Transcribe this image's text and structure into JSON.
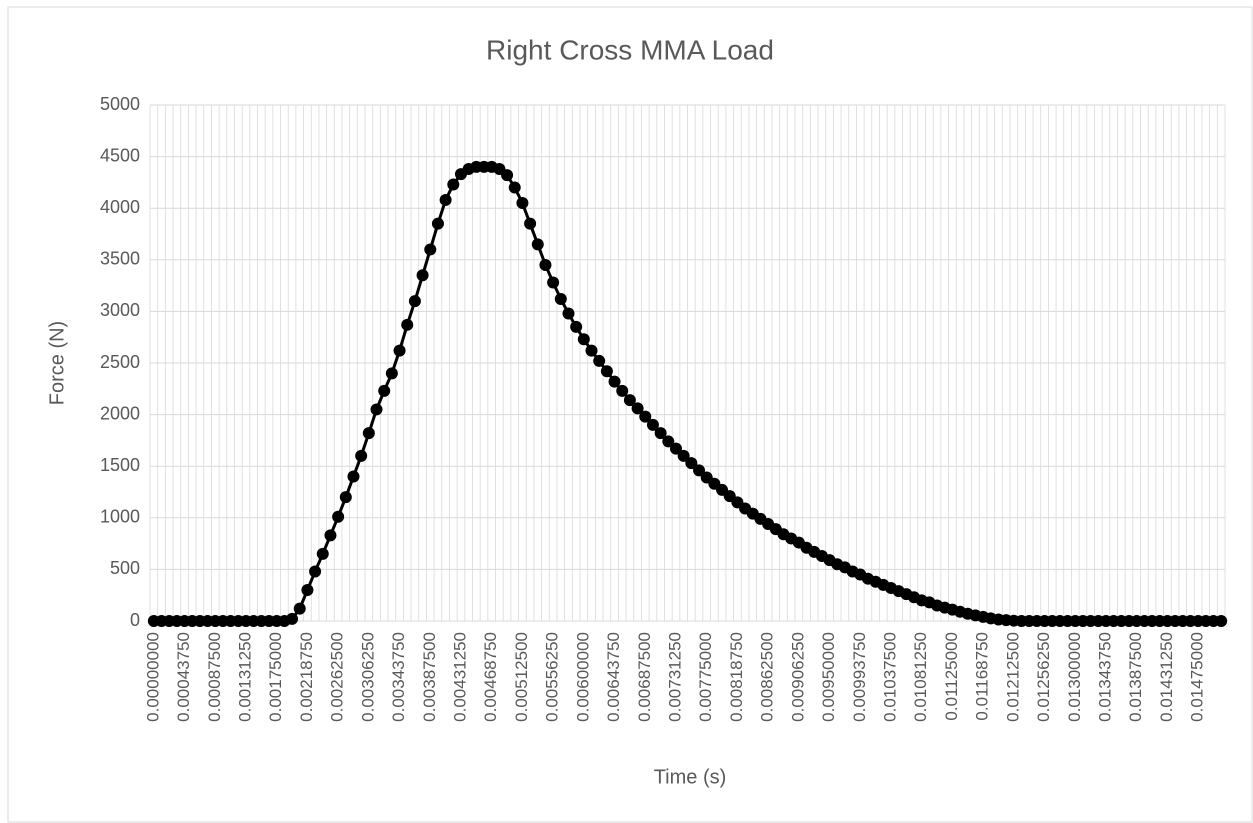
{
  "chart_data": {
    "type": "line",
    "title": "Right Cross MMA Load",
    "x_label": "Time (s)",
    "y_label": "Force (N)",
    "categories": [
      "0.00000000",
      null,
      null,
      null,
      "0.00043750",
      null,
      null,
      null,
      "0.00087500",
      null,
      null,
      null,
      "0.00131250",
      null,
      null,
      null,
      "0.00175000",
      null,
      null,
      null,
      "0.00218750",
      null,
      null,
      null,
      "0.00262500",
      null,
      null,
      null,
      "0.00306250",
      null,
      null,
      null,
      "0.00343750",
      null,
      null,
      null,
      "0.00387500",
      null,
      null,
      null,
      "0.00431250",
      null,
      null,
      null,
      "0.00468750",
      null,
      null,
      null,
      "0.00512500",
      null,
      null,
      null,
      "0.00556250",
      null,
      null,
      null,
      "0.00600000",
      null,
      null,
      null,
      "0.00643750",
      null,
      null,
      null,
      "0.00687500",
      null,
      null,
      null,
      "0.00731250",
      null,
      null,
      null,
      "0.00775000",
      null,
      null,
      null,
      "0.00818750",
      null,
      null,
      null,
      "0.00862500",
      null,
      null,
      null,
      "0.00906250",
      null,
      null,
      null,
      "0.00950000",
      null,
      null,
      null,
      "0.00993750",
      null,
      null,
      null,
      "0.01037500",
      null,
      null,
      null,
      "0.01081250",
      null,
      null,
      null,
      "0.01125000",
      null,
      null,
      null,
      "0.01168750",
      null,
      null,
      null,
      "0.01212500",
      null,
      null,
      null,
      "0.01256250",
      null,
      null,
      null,
      "0.01300000",
      null,
      null,
      null,
      "0.01343750",
      null,
      null,
      null,
      "0.01387500",
      null,
      null,
      null,
      "0.01431250",
      null,
      null,
      null,
      "0.01475000",
      null,
      null,
      null
    ],
    "series": [
      {
        "name": "Force",
        "color": "#000000",
        "values": [
          0,
          0,
          0,
          0,
          0,
          0,
          0,
          0,
          0,
          0,
          0,
          0,
          0,
          0,
          0,
          0,
          0,
          0,
          20,
          120,
          300,
          480,
          650,
          830,
          1010,
          1200,
          1400,
          1600,
          1820,
          2050,
          2230,
          2400,
          2620,
          2870,
          3100,
          3350,
          3600,
          3850,
          4080,
          4230,
          4330,
          4380,
          4400,
          4400,
          4400,
          4380,
          4320,
          4200,
          4050,
          3850,
          3650,
          3450,
          3280,
          3120,
          2980,
          2850,
          2730,
          2620,
          2520,
          2420,
          2320,
          2230,
          2140,
          2060,
          1980,
          1900,
          1820,
          1740,
          1670,
          1600,
          1530,
          1460,
          1390,
          1330,
          1270,
          1210,
          1150,
          1090,
          1040,
          990,
          940,
          890,
          840,
          800,
          760,
          710,
          670,
          630,
          590,
          550,
          520,
          480,
          450,
          410,
          380,
          350,
          320,
          290,
          260,
          230,
          200,
          180,
          150,
          130,
          110,
          90,
          70,
          55,
          40,
          25,
          15,
          8,
          3,
          0,
          0,
          0,
          0,
          0,
          0,
          0,
          0,
          0,
          0,
          0,
          0,
          0,
          0,
          0,
          0,
          0,
          0,
          0,
          0,
          0,
          0,
          0,
          0,
          0,
          0,
          0
        ]
      }
    ],
    "ylim": [
      0,
      5000
    ],
    "yticks": [
      0,
      500,
      1000,
      1500,
      2000,
      2500,
      3000,
      3500,
      4000,
      4500,
      5000
    ],
    "grid": true
  }
}
